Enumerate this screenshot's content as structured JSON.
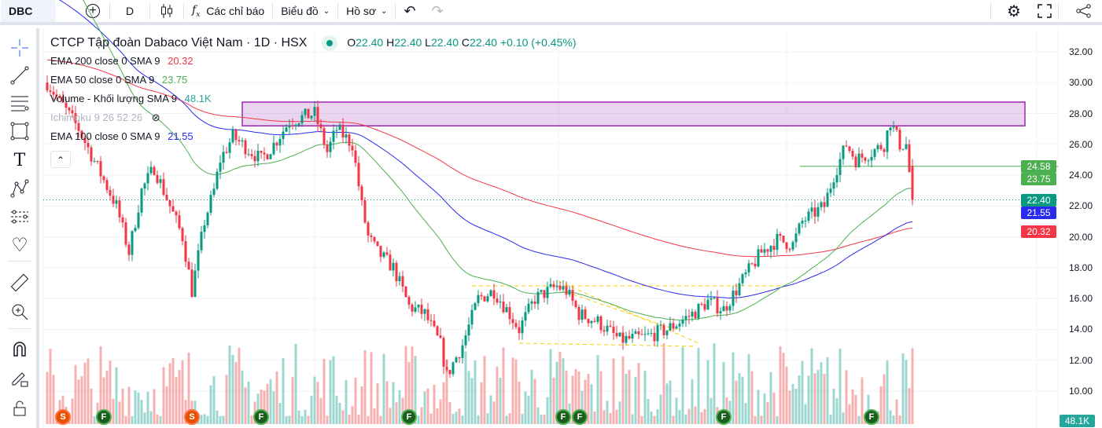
{
  "toolbar": {
    "symbol": "DBC",
    "interval": "D",
    "indicators_label": "Các chỉ báo",
    "chart_label": "Biểu đồ",
    "profile_label": "Hồ sơ"
  },
  "legend": {
    "title": "CTCP Tập đoàn Dabaco Việt Nam · 1D · HSX",
    "ohlc": {
      "o_label": "O",
      "o": "22.40",
      "h_label": "H",
      "h": "22.40",
      "l_label": "L",
      "l": "22.40",
      "c_label": "C",
      "c": "22.40",
      "change": "+0.10 (+0.45%)"
    },
    "indicators": [
      {
        "name": "EMA 200 close 0 SMA 9",
        "value": "20.32",
        "color": "#f23645"
      },
      {
        "name": "EMA 50 close 0 SMA 9",
        "value": "23.75",
        "color": "#4caf50"
      },
      {
        "name": "Volume - Khối lượng SMA 9",
        "value": "48.1K",
        "color": "#26a69a"
      },
      {
        "name": "Ichimoku 9 26 52 26",
        "value": "",
        "color": "#b2b5be"
      },
      {
        "name": "EMA 100 close 0 SMA 9",
        "value": "21.55",
        "color": "#2a2ae8"
      }
    ]
  },
  "price_labels": [
    {
      "text": "24.58",
      "color": "#4caf50",
      "price": 24.58
    },
    {
      "text": "23.75",
      "color": "#4caf50",
      "price": 23.75
    },
    {
      "text": "22.40",
      "color": "#089981",
      "price": 22.4
    },
    {
      "text": "21.55",
      "color": "#2a2af0",
      "price": 21.55
    },
    {
      "text": "20.32",
      "color": "#f23645",
      "price": 20.32
    }
  ],
  "volume_label": {
    "text": "48.1K",
    "color": "#26a69a"
  },
  "events": [
    {
      "t": "S",
      "bar": 5
    },
    {
      "t": "F",
      "bar": 18
    },
    {
      "t": "S",
      "bar": 46
    },
    {
      "t": "F",
      "bar": 68
    },
    {
      "t": "F",
      "bar": 115
    },
    {
      "t": "F",
      "bar": 164
    },
    {
      "t": "F",
      "bar": 168
    },
    {
      "t": "F",
      "bar": 215
    },
    {
      "t": "F",
      "bar": 262
    }
  ],
  "chart_data": {
    "type": "candlestick",
    "yticks": [
      "32.00",
      "30.00",
      "28.00",
      "26.00",
      "24.00",
      "22.00",
      "20.00",
      "18.00",
      "16.00",
      "14.00",
      "12.00",
      "10.00"
    ],
    "ylim": [
      10,
      32
    ],
    "last_close": 22.4,
    "price_path": [
      [
        0,
        30
      ],
      [
        10,
        27
      ],
      [
        22,
        22
      ],
      [
        26,
        19
      ],
      [
        30,
        23
      ],
      [
        34,
        24.5
      ],
      [
        39,
        22
      ],
      [
        43,
        20
      ],
      [
        46,
        16.5
      ],
      [
        50,
        21
      ],
      [
        53,
        23
      ],
      [
        55,
        25
      ],
      [
        59,
        26.5
      ],
      [
        68,
        25
      ],
      [
        72,
        26
      ],
      [
        77,
        27.5
      ],
      [
        85,
        28
      ],
      [
        89,
        25.5
      ],
      [
        92,
        27
      ],
      [
        97,
        26
      ],
      [
        100,
        22
      ],
      [
        102,
        20
      ],
      [
        105,
        19
      ],
      [
        110,
        18
      ],
      [
        115,
        15.5
      ],
      [
        120,
        15
      ],
      [
        125,
        13
      ],
      [
        127,
        11
      ],
      [
        132,
        13
      ],
      [
        137,
        16
      ],
      [
        142,
        16.5
      ],
      [
        147,
        15
      ],
      [
        150,
        14
      ],
      [
        155,
        16
      ],
      [
        162,
        16.8
      ],
      [
        165,
        16.5
      ],
      [
        169,
        15
      ],
      [
        175,
        14.5
      ],
      [
        182,
        13.3
      ],
      [
        190,
        13.5
      ],
      [
        197,
        14
      ],
      [
        205,
        15
      ],
      [
        210,
        15.8
      ],
      [
        215,
        15.3
      ],
      [
        222,
        17.5
      ],
      [
        227,
        19
      ],
      [
        232,
        19.8
      ],
      [
        237,
        19.5
      ],
      [
        240,
        21
      ],
      [
        247,
        22
      ],
      [
        250,
        24
      ],
      [
        254,
        26
      ],
      [
        257,
        25
      ],
      [
        262,
        25.5
      ],
      [
        266,
        26
      ],
      [
        268,
        27.5
      ],
      [
        271,
        26
      ],
      [
        273,
        26
      ],
      [
        275,
        22.4
      ]
    ],
    "zone": {
      "top": 28.74,
      "bottom": 27.2
    },
    "hline": 24.58
  }
}
